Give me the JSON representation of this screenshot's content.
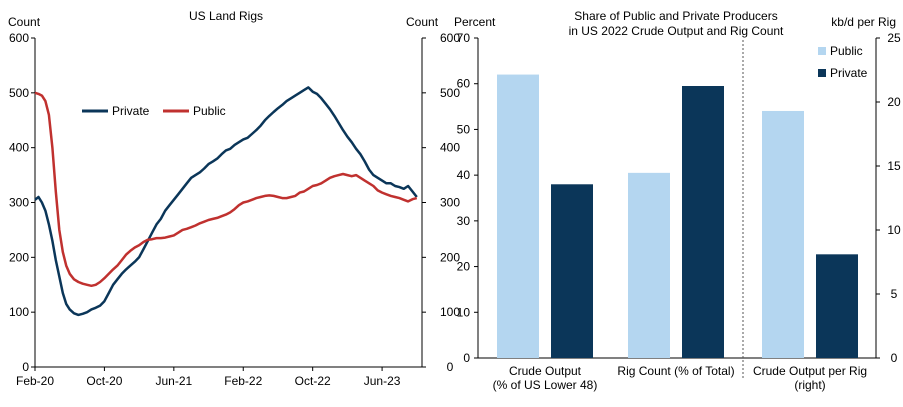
{
  "chart_data": [
    {
      "type": "line",
      "title": "US Land Rigs",
      "ylabel_left": "Count",
      "ylabel_right": "Count",
      "ylim": [
        0,
        600
      ],
      "y_ticks": [
        "0",
        "100",
        "200",
        "300",
        "400",
        "500",
        "600"
      ],
      "x_ticks": [
        "Feb-20",
        "Oct-20",
        "Jun-21",
        "Feb-22",
        "Oct-22",
        "Jun-23"
      ],
      "x_tick_months": [
        0,
        8,
        16,
        24,
        32,
        40
      ],
      "legend_position": "upper-left",
      "series": [
        {
          "name": "Private",
          "color": "#0B3659",
          "points": [
            [
              0,
              305
            ],
            [
              0.4,
              310
            ],
            [
              0.8,
              300
            ],
            [
              1.2,
              285
            ],
            [
              1.6,
              260
            ],
            [
              2,
              230
            ],
            [
              2.4,
              195
            ],
            [
              2.8,
              165
            ],
            [
              3.2,
              135
            ],
            [
              3.6,
              115
            ],
            [
              4,
              105
            ],
            [
              4.5,
              98
            ],
            [
              5,
              95
            ],
            [
              5.5,
              97
            ],
            [
              6,
              100
            ],
            [
              6.5,
              105
            ],
            [
              7,
              108
            ],
            [
              7.5,
              112
            ],
            [
              8,
              120
            ],
            [
              8.5,
              135
            ],
            [
              9,
              150
            ],
            [
              9.5,
              160
            ],
            [
              10,
              170
            ],
            [
              10.5,
              178
            ],
            [
              11,
              185
            ],
            [
              11.5,
              192
            ],
            [
              12,
              200
            ],
            [
              12.5,
              215
            ],
            [
              13,
              230
            ],
            [
              13.5,
              245
            ],
            [
              14,
              260
            ],
            [
              14.5,
              270
            ],
            [
              15,
              285
            ],
            [
              15.5,
              295
            ],
            [
              16,
              305
            ],
            [
              16.5,
              315
            ],
            [
              17,
              325
            ],
            [
              17.5,
              335
            ],
            [
              18,
              345
            ],
            [
              18.5,
              350
            ],
            [
              19,
              355
            ],
            [
              19.5,
              362
            ],
            [
              20,
              370
            ],
            [
              20.5,
              375
            ],
            [
              21,
              380
            ],
            [
              21.5,
              388
            ],
            [
              22,
              395
            ],
            [
              22.5,
              398
            ],
            [
              23,
              405
            ],
            [
              23.5,
              410
            ],
            [
              24,
              415
            ],
            [
              24.5,
              418
            ],
            [
              25,
              425
            ],
            [
              25.5,
              432
            ],
            [
              26,
              440
            ],
            [
              26.5,
              450
            ],
            [
              27,
              458
            ],
            [
              27.5,
              465
            ],
            [
              28,
              472
            ],
            [
              28.5,
              478
            ],
            [
              29,
              485
            ],
            [
              29.5,
              490
            ],
            [
              30,
              495
            ],
            [
              30.5,
              500
            ],
            [
              31,
              505
            ],
            [
              31.5,
              510
            ],
            [
              32,
              502
            ],
            [
              32.5,
              498
            ],
            [
              33,
              490
            ],
            [
              33.5,
              480
            ],
            [
              34,
              470
            ],
            [
              34.5,
              458
            ],
            [
              35,
              445
            ],
            [
              35.5,
              432
            ],
            [
              36,
              420
            ],
            [
              36.5,
              410
            ],
            [
              37,
              398
            ],
            [
              37.5,
              388
            ],
            [
              38,
              375
            ],
            [
              38.5,
              360
            ],
            [
              39,
              350
            ],
            [
              39.5,
              345
            ],
            [
              40,
              340
            ],
            [
              40.5,
              335
            ],
            [
              41,
              335
            ],
            [
              41.5,
              330
            ],
            [
              42,
              328
            ],
            [
              42.5,
              325
            ],
            [
              43,
              330
            ],
            [
              43.5,
              320
            ],
            [
              44,
              310
            ]
          ]
        },
        {
          "name": "Public",
          "color": "#C0312F",
          "points": [
            [
              0,
              500
            ],
            [
              0.4,
              498
            ],
            [
              0.8,
              495
            ],
            [
              1.2,
              485
            ],
            [
              1.6,
              460
            ],
            [
              2,
              400
            ],
            [
              2.4,
              320
            ],
            [
              2.8,
              250
            ],
            [
              3.2,
              210
            ],
            [
              3.6,
              185
            ],
            [
              4,
              170
            ],
            [
              4.5,
              160
            ],
            [
              5,
              155
            ],
            [
              5.5,
              152
            ],
            [
              6,
              150
            ],
            [
              6.5,
              148
            ],
            [
              7,
              150
            ],
            [
              7.5,
              155
            ],
            [
              8,
              162
            ],
            [
              8.5,
              170
            ],
            [
              9,
              178
            ],
            [
              9.5,
              185
            ],
            [
              10,
              195
            ],
            [
              10.5,
              205
            ],
            [
              11,
              212
            ],
            [
              11.5,
              218
            ],
            [
              12,
              222
            ],
            [
              12.5,
              228
            ],
            [
              13,
              232
            ],
            [
              13.5,
              233
            ],
            [
              14,
              235
            ],
            [
              14.5,
              235
            ],
            [
              15,
              236
            ],
            [
              15.5,
              238
            ],
            [
              16,
              240
            ],
            [
              16.5,
              245
            ],
            [
              17,
              250
            ],
            [
              17.5,
              252
            ],
            [
              18,
              255
            ],
            [
              18.5,
              258
            ],
            [
              19,
              262
            ],
            [
              19.5,
              265
            ],
            [
              20,
              268
            ],
            [
              20.5,
              270
            ],
            [
              21,
              272
            ],
            [
              21.5,
              275
            ],
            [
              22,
              278
            ],
            [
              22.5,
              282
            ],
            [
              23,
              288
            ],
            [
              23.5,
              295
            ],
            [
              24,
              300
            ],
            [
              24.5,
              302
            ],
            [
              25,
              305
            ],
            [
              25.5,
              308
            ],
            [
              26,
              310
            ],
            [
              26.5,
              312
            ],
            [
              27,
              313
            ],
            [
              27.5,
              312
            ],
            [
              28,
              310
            ],
            [
              28.5,
              308
            ],
            [
              29,
              308
            ],
            [
              29.5,
              310
            ],
            [
              30,
              312
            ],
            [
              30.5,
              318
            ],
            [
              31,
              320
            ],
            [
              31.5,
              325
            ],
            [
              32,
              330
            ],
            [
              32.5,
              332
            ],
            [
              33,
              335
            ],
            [
              33.5,
              340
            ],
            [
              34,
              345
            ],
            [
              34.5,
              348
            ],
            [
              35,
              350
            ],
            [
              35.5,
              352
            ],
            [
              36,
              350
            ],
            [
              36.5,
              348
            ],
            [
              37,
              350
            ],
            [
              37.5,
              345
            ],
            [
              38,
              340
            ],
            [
              38.5,
              335
            ],
            [
              39,
              330
            ],
            [
              39.5,
              322
            ],
            [
              40,
              318
            ],
            [
              40.5,
              315
            ],
            [
              41,
              312
            ],
            [
              41.5,
              310
            ],
            [
              42,
              308
            ],
            [
              42.5,
              305
            ],
            [
              43,
              302
            ],
            [
              43.5,
              306
            ],
            [
              44,
              308
            ]
          ]
        }
      ]
    },
    {
      "type": "bar",
      "title_lines": [
        "Share of Public and Private Producers",
        "in US 2022 Crude Output and Rig Count"
      ],
      "ylabel_left": "Percent",
      "ylabel_right": "kb/d per Rig",
      "ylim_left": [
        0,
        70
      ],
      "ylim_right": [
        0,
        25
      ],
      "y_ticks_left": [
        "0",
        "10",
        "20",
        "30",
        "40",
        "50",
        "60",
        "70"
      ],
      "y_ticks_right": [
        "0",
        "5",
        "10",
        "15",
        "20",
        "25"
      ],
      "legend_position": "upper-right",
      "groups": [
        {
          "label_lines": [
            "Crude Output",
            "(% of US Lower 48)"
          ],
          "axis": "left",
          "values": {
            "Public": 62,
            "Private": 38
          }
        },
        {
          "label_lines": [
            "Rig Count (% of Total)"
          ],
          "axis": "left",
          "values": {
            "Public": 40.5,
            "Private": 59.5
          }
        },
        {
          "label_lines": [
            "Crude Output per Rig",
            "(right)"
          ],
          "axis": "right",
          "values": {
            "Public": 19.3,
            "Private": 8.1
          }
        }
      ],
      "series": [
        {
          "name": "Public",
          "color": "#B4D6F0"
        },
        {
          "name": "Private",
          "color": "#0B3659"
        }
      ]
    }
  ]
}
